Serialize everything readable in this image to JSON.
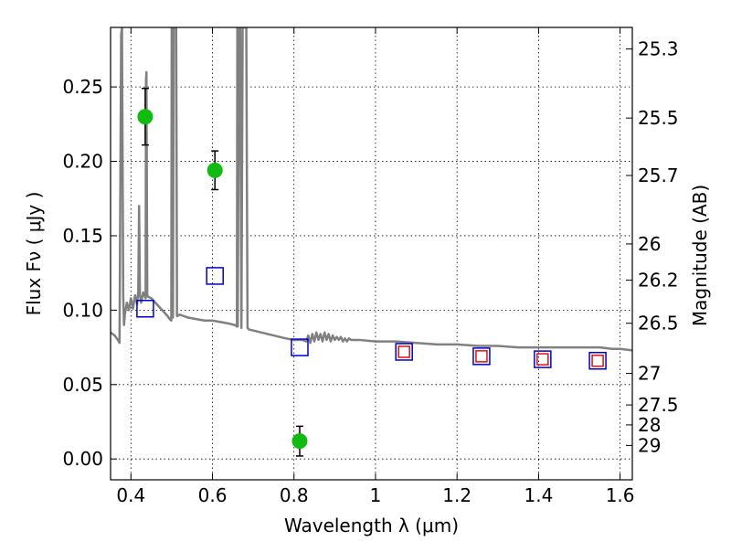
{
  "chart_data": {
    "type": "scatter",
    "xlabel": "Wavelength  λ (μm)",
    "ylabel": "Flux  Fν  ( μJy )",
    "y2label": "Magnitude (AB)",
    "xlim": [
      0.35,
      1.63
    ],
    "ylim": [
      -0.014,
      0.29
    ],
    "grid": true,
    "x_ticks": [
      0.4,
      0.6,
      0.8,
      1.0,
      1.2,
      1.4,
      1.6
    ],
    "x_tick_labels": [
      "0.4",
      "0.6",
      "0.8",
      "1",
      "1.2",
      "1.4",
      "1.6"
    ],
    "y_ticks": [
      0.0,
      0.05,
      0.1,
      0.15,
      0.2,
      0.25
    ],
    "y_tick_labels": [
      "0.00",
      "0.05",
      "0.10",
      "0.15",
      "0.20",
      "0.25"
    ],
    "y2_ticks": [
      {
        "label": "25.3",
        "flux": 0.2755
      },
      {
        "label": "25.5",
        "flux": 0.2291
      },
      {
        "label": "25.7",
        "flux": 0.1905
      },
      {
        "label": "26",
        "flux": 0.1445
      },
      {
        "label": "26.2",
        "flux": 0.1202
      },
      {
        "label": "26.5",
        "flux": 0.0912
      },
      {
        "label": "27",
        "flux": 0.0575
      },
      {
        "label": "27.5",
        "flux": 0.0363
      },
      {
        "label": "28",
        "flux": 0.0229
      },
      {
        "label": "29",
        "flux": 0.0091
      }
    ],
    "series": [
      {
        "marker": "circle-filled",
        "color": "#11bb11",
        "points": [
          {
            "x": 0.435,
            "y": 0.23,
            "yerr": 0.019
          },
          {
            "x": 0.606,
            "y": 0.194,
            "yerr": 0.013
          },
          {
            "x": 0.814,
            "y": 0.012,
            "yerr": 0.01
          }
        ]
      },
      {
        "marker": "square-open",
        "color": "#0000cc",
        "points": [
          {
            "x": 0.435,
            "y": 0.101
          },
          {
            "x": 0.606,
            "y": 0.123
          },
          {
            "x": 0.814,
            "y": 0.075
          },
          {
            "x": 1.07,
            "y": 0.072
          },
          {
            "x": 1.26,
            "y": 0.069
          },
          {
            "x": 1.41,
            "y": 0.067
          },
          {
            "x": 1.545,
            "y": 0.066
          }
        ]
      },
      {
        "marker": "square-open-small",
        "color": "#dd1111",
        "points": [
          {
            "x": 1.07,
            "y": 0.072
          },
          {
            "x": 1.26,
            "y": 0.069
          },
          {
            "x": 1.41,
            "y": 0.067
          },
          {
            "x": 1.545,
            "y": 0.066
          }
        ]
      },
      {
        "marker": "line",
        "color": "#808080",
        "x": [
          0.35,
          0.36,
          0.368,
          0.372,
          0.376,
          0.378,
          0.381,
          0.383,
          0.385,
          0.39,
          0.395,
          0.4,
          0.405,
          0.41,
          0.415,
          0.418,
          0.42,
          0.422,
          0.425,
          0.43,
          0.436,
          0.437,
          0.438,
          0.44,
          0.442,
          0.45,
          0.46,
          0.47,
          0.48,
          0.49,
          0.495,
          0.499,
          0.5,
          0.501,
          0.503,
          0.505,
          0.507,
          0.509,
          0.511,
          0.513,
          0.52,
          0.54,
          0.56,
          0.58,
          0.6,
          0.62,
          0.64,
          0.655,
          0.66,
          0.661,
          0.662,
          0.665,
          0.668,
          0.671,
          0.674,
          0.677,
          0.68,
          0.683,
          0.686,
          0.69,
          0.72,
          0.75,
          0.78,
          0.8,
          0.82,
          0.83,
          0.835,
          0.84,
          0.845,
          0.85,
          0.855,
          0.86,
          0.865,
          0.87,
          0.875,
          0.88,
          0.885,
          0.89,
          0.895,
          0.9,
          0.905,
          0.91,
          0.915,
          0.92,
          0.925,
          0.93,
          0.935,
          0.94,
          0.96,
          1.0,
          1.05,
          1.1,
          1.15,
          1.2,
          1.25,
          1.3,
          1.35,
          1.4,
          1.45,
          1.5,
          1.55,
          1.58,
          1.6,
          1.63
        ],
        "y": [
          0.085,
          0.083,
          0.08,
          0.078,
          0.285,
          0.29,
          0.11,
          0.09,
          0.097,
          0.105,
          0.1,
          0.108,
          0.101,
          0.11,
          0.104,
          0.113,
          0.17,
          0.11,
          0.105,
          0.112,
          0.108,
          0.255,
          0.26,
          0.11,
          0.109,
          0.108,
          0.105,
          0.102,
          0.099,
          0.096,
          0.094,
          0.093,
          0.29,
          0.29,
          0.095,
          0.29,
          0.29,
          0.29,
          0.29,
          0.096,
          0.097,
          0.095,
          0.094,
          0.093,
          0.093,
          0.092,
          0.091,
          0.09,
          0.089,
          0.29,
          0.089,
          0.29,
          0.29,
          0.088,
          0.29,
          0.29,
          0.29,
          0.29,
          0.088,
          0.087,
          0.085,
          0.083,
          0.081,
          0.08,
          0.08,
          0.079,
          0.083,
          0.078,
          0.084,
          0.079,
          0.085,
          0.08,
          0.084,
          0.079,
          0.085,
          0.08,
          0.084,
          0.079,
          0.083,
          0.08,
          0.082,
          0.08,
          0.082,
          0.079,
          0.081,
          0.079,
          0.081,
          0.08,
          0.08,
          0.079,
          0.079,
          0.078,
          0.077,
          0.077,
          0.076,
          0.076,
          0.075,
          0.075,
          0.075,
          0.075,
          0.075,
          0.074,
          0.074,
          0.073
        ]
      }
    ]
  }
}
